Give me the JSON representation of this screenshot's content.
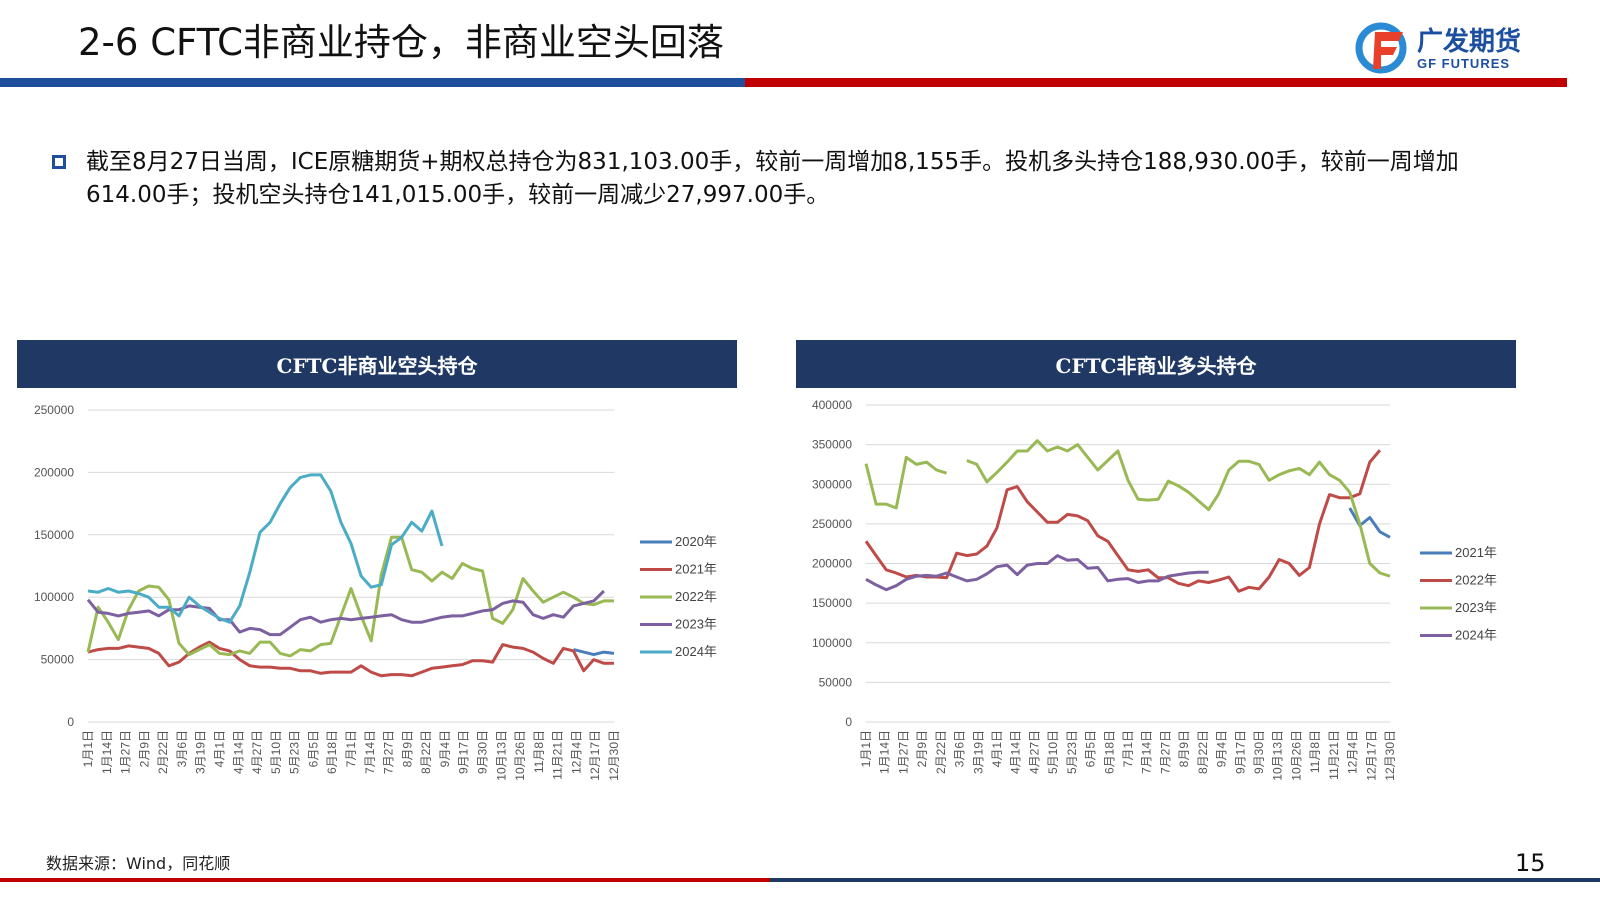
{
  "header": {
    "title": "2-6 CFTC非商业持仓，非商业空头回落",
    "logo_cn": "广发期货",
    "logo_en": "GF FUTURES"
  },
  "summary": "截至8月27日当周，ICE原糖期货+期权总持仓为831,103.00手，较前一周增加8,155手。投机多头持仓188,930.00手，较前一周增加614.00手；投机空头持仓141,015.00手，较前一周减少27,997.00手。",
  "footer": {
    "source": "数据来源：Wind，同花顺",
    "page": "15"
  },
  "chart_data": [
    {
      "type": "line",
      "title": "CFTC非商业空头持仓",
      "ylim": [
        0,
        250000
      ],
      "yticks": [
        0,
        50000,
        100000,
        150000,
        200000,
        250000
      ],
      "legend": "right",
      "x_labels": [
        "1月1日",
        "1月14日",
        "1月27日",
        "2月9日",
        "2月22日",
        "3月6日",
        "3月19日",
        "4月1日",
        "4月14日",
        "4月27日",
        "5月10日",
        "5月23日",
        "6月5日",
        "6月18日",
        "7月1日",
        "7月14日",
        "7月27日",
        "8月9日",
        "8月22日",
        "9月4日",
        "9月17日",
        "9月30日",
        "10月13日",
        "10月26日",
        "11月8日",
        "11月21日",
        "12月4日",
        "12月17日",
        "12月30日"
      ],
      "weeks": 53,
      "unit": 1000,
      "series": [
        {
          "name": "2020年",
          "color": "#4a7ebb",
          "values": [
            null,
            null,
            null,
            null,
            null,
            null,
            null,
            null,
            null,
            null,
            null,
            null,
            null,
            null,
            null,
            null,
            null,
            null,
            null,
            null,
            null,
            null,
            null,
            null,
            null,
            null,
            null,
            null,
            null,
            null,
            null,
            null,
            null,
            null,
            null,
            null,
            null,
            null,
            null,
            null,
            null,
            null,
            null,
            null,
            null,
            null,
            null,
            null,
            58,
            56,
            54,
            56,
            55
          ]
        },
        {
          "name": "2021年",
          "color": "#be4b48",
          "values": [
            56,
            58,
            59,
            59,
            61,
            60,
            59,
            55,
            45,
            48,
            55,
            60,
            64,
            59,
            57,
            50,
            45,
            44,
            44,
            43,
            43,
            41,
            41,
            39,
            40,
            40,
            40,
            45,
            40,
            37,
            38,
            38,
            37,
            40,
            43,
            44,
            45,
            46,
            49,
            49,
            48,
            62,
            60,
            59,
            56,
            51,
            47,
            59,
            57,
            41,
            50,
            47,
            47
          ]
        },
        {
          "name": "2022年",
          "color": "#98b954",
          "values": [
            56,
            92,
            80,
            66,
            90,
            105,
            109,
            108,
            98,
            63,
            54,
            58,
            62,
            55,
            54,
            57,
            55,
            64,
            64,
            55,
            53,
            58,
            57,
            62,
            63,
            85,
            107,
            85,
            65,
            118,
            148,
            148,
            122,
            120,
            113,
            120,
            115,
            127,
            123,
            121,
            83,
            79,
            90,
            115,
            105,
            96,
            100,
            104,
            100,
            95,
            94,
            97,
            97
          ]
        },
        {
          "name": "2023年",
          "color": "#7d60a0",
          "values": [
            98,
            88,
            87,
            85,
            87,
            88,
            89,
            85,
            90,
            90,
            93,
            92,
            91,
            82,
            82,
            72,
            75,
            74,
            70,
            70,
            76,
            82,
            84,
            80,
            82,
            83,
            82,
            83,
            84,
            85,
            86,
            82,
            80,
            80,
            82,
            84,
            85,
            85,
            87,
            89,
            90,
            95,
            97,
            96,
            86,
            83,
            86,
            84,
            93,
            95,
            97,
            105,
            null
          ]
        },
        {
          "name": "2024年",
          "color": "#4bacc6",
          "values": [
            105,
            104,
            107,
            104,
            105,
            103,
            100,
            92,
            92,
            85,
            100,
            93,
            88,
            83,
            80,
            93,
            120,
            152,
            160,
            175,
            188,
            196,
            198,
            198,
            185,
            160,
            143,
            117,
            108,
            110,
            142,
            148,
            160,
            153,
            169,
            141
          ]
        }
      ]
    },
    {
      "type": "line",
      "title": "CFTC非商业多头持仓",
      "ylim": [
        0,
        400000
      ],
      "yticks": [
        0,
        50000,
        100000,
        150000,
        200000,
        250000,
        300000,
        350000,
        400000
      ],
      "legend": "right",
      "x_labels": [
        "1月1日",
        "1月14日",
        "1月27日",
        "2月9日",
        "2月22日",
        "3月6日",
        "3月19日",
        "4月1日",
        "4月14日",
        "4月27日",
        "5月10日",
        "5月23日",
        "6月5日",
        "6月18日",
        "7月1日",
        "7月14日",
        "7月27日",
        "8月9日",
        "8月22日",
        "9月4日",
        "9月17日",
        "9月30日",
        "10月13日",
        "10月26日",
        "11月8日",
        "11月21日",
        "12月4日",
        "12月17日",
        "12月30日"
      ],
      "weeks": 53,
      "unit": 1000,
      "series": [
        {
          "name": "2021年",
          "color": "#4a7ebb",
          "values": [
            null,
            null,
            null,
            null,
            null,
            null,
            null,
            null,
            null,
            null,
            null,
            null,
            null,
            null,
            null,
            null,
            null,
            null,
            null,
            null,
            null,
            null,
            null,
            null,
            null,
            null,
            null,
            null,
            null,
            null,
            null,
            null,
            null,
            null,
            null,
            null,
            null,
            null,
            null,
            null,
            null,
            null,
            null,
            null,
            null,
            null,
            null,
            null,
            270,
            248,
            258,
            240,
            233
          ]
        },
        {
          "name": "2022年",
          "color": "#be4b48",
          "values": [
            228,
            210,
            192,
            188,
            183,
            185,
            183,
            183,
            182,
            213,
            210,
            212,
            222,
            245,
            293,
            297,
            278,
            265,
            252,
            252,
            262,
            260,
            254,
            235,
            228,
            210,
            192,
            190,
            192,
            182,
            182,
            175,
            172,
            178,
            176,
            179,
            183,
            165,
            170,
            168,
            183,
            205,
            200,
            185,
            195,
            250,
            287,
            283,
            283,
            288,
            328,
            343,
            null
          ]
        },
        {
          "name": "2023年",
          "color": "#98b954",
          "values": [
            326,
            275,
            275,
            270,
            334,
            325,
            328,
            318,
            314,
            null,
            330,
            325,
            303,
            315,
            328,
            342,
            342,
            355,
            342,
            347,
            342,
            350,
            334,
            318,
            330,
            342,
            305,
            281,
            280,
            281,
            304,
            298,
            290,
            279,
            268,
            288,
            318,
            329,
            329,
            325,
            305,
            312,
            317,
            320,
            312,
            328,
            312,
            305,
            290,
            250,
            200,
            188,
            184
          ]
        },
        {
          "name": "2024年",
          "color": "#7d60a0",
          "values": [
            180,
            173,
            167,
            172,
            180,
            184,
            185,
            184,
            188,
            183,
            178,
            180,
            187,
            196,
            198,
            186,
            198,
            200,
            200,
            210,
            204,
            205,
            194,
            195,
            178,
            180,
            181,
            176,
            178,
            178,
            184,
            186,
            188,
            189,
            189
          ]
        }
      ]
    }
  ]
}
